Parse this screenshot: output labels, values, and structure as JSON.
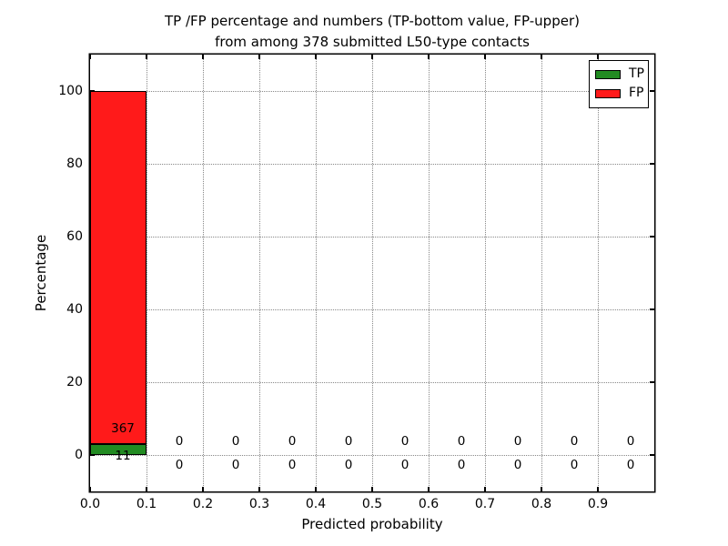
{
  "chart_data": {
    "type": "bar",
    "stacked": true,
    "title_line1": "TP /FP percentage and numbers (TP-bottom value, FP-upper)",
    "title_line2": "from among 378 submitted L50-type contacts",
    "xlabel": "Predicted probability",
    "ylabel": "Percentage",
    "xlim": [
      0.0,
      1.0
    ],
    "ylim": [
      -10,
      110
    ],
    "xtick_values": [
      0.0,
      0.1,
      0.2,
      0.3,
      0.4,
      0.5,
      0.6,
      0.7,
      0.8,
      0.9
    ],
    "xtick_labels": [
      "0.0",
      "0.1",
      "0.2",
      "0.3",
      "0.4",
      "0.5",
      "0.6",
      "0.7",
      "0.8",
      "0.9"
    ],
    "ytick_values": [
      0,
      20,
      40,
      60,
      80,
      100
    ],
    "ytick_labels": [
      "0",
      "20",
      "40",
      "60",
      "80",
      "100"
    ],
    "grid": "dotted",
    "total_contacts": 378,
    "bin_width": 0.1,
    "bin_starts": [
      0.0,
      0.1,
      0.2,
      0.3,
      0.4,
      0.5,
      0.6,
      0.7,
      0.8,
      0.9
    ],
    "series": [
      {
        "name": "TP",
        "color": "#228b22",
        "counts": [
          11,
          0,
          0,
          0,
          0,
          0,
          0,
          0,
          0,
          0
        ],
        "percent": [
          2.91,
          0,
          0,
          0,
          0,
          0,
          0,
          0,
          0,
          0
        ]
      },
      {
        "name": "FP",
        "color": "#ff1a1a",
        "counts": [
          367,
          0,
          0,
          0,
          0,
          0,
          0,
          0,
          0,
          0
        ],
        "percent": [
          97.09,
          0,
          0,
          0,
          0,
          0,
          0,
          0,
          0,
          0
        ]
      }
    ],
    "legend": {
      "position": "upper right",
      "entries": [
        {
          "label": "TP",
          "color": "#228b22"
        },
        {
          "label": "FP",
          "color": "#ff1a1a"
        }
      ]
    }
  }
}
